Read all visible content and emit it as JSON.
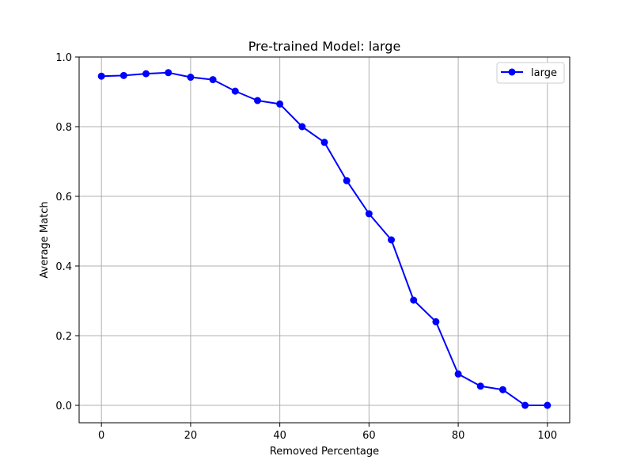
{
  "chart_data": {
    "type": "line",
    "title": "Pre-trained Model: large",
    "xlabel": "Removed Percentage",
    "ylabel": "Average Match",
    "xlim": [
      -5,
      105
    ],
    "ylim": [
      -0.05,
      1.0
    ],
    "xticks": [
      0,
      20,
      40,
      60,
      80,
      100
    ],
    "yticks": [
      0.0,
      0.2,
      0.4,
      0.6,
      0.8,
      1.0
    ],
    "xtick_labels": [
      "0",
      "20",
      "40",
      "60",
      "80",
      "100"
    ],
    "ytick_labels": [
      "0.0",
      "0.2",
      "0.4",
      "0.6",
      "0.8",
      "1.0"
    ],
    "grid": true,
    "legend_position": "top-right",
    "x": [
      0,
      5,
      10,
      15,
      20,
      25,
      30,
      35,
      40,
      45,
      50,
      55,
      60,
      65,
      70,
      75,
      80,
      85,
      90,
      95,
      100
    ],
    "series": [
      {
        "name": "large",
        "color": "#0000ff",
        "marker": "circle",
        "values": [
          0.945,
          0.947,
          0.952,
          0.955,
          0.942,
          0.935,
          0.902,
          0.875,
          0.865,
          0.8,
          0.755,
          0.645,
          0.55,
          0.475,
          0.302,
          0.24,
          0.09,
          0.055,
          0.045,
          0.0,
          0.0
        ]
      }
    ]
  }
}
